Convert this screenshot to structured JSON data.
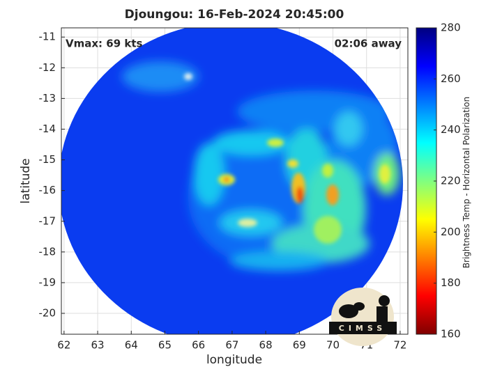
{
  "chart_data": {
    "type": "image",
    "title": "Djoungou: 16-Feb-2024 20:45:00",
    "annotations": [
      "Vmax: 69 kts",
      "02:06 away"
    ],
    "xlabel": "longitude",
    "ylabel": "latitude",
    "xlim": [
      61.92,
      72.23
    ],
    "xticks": [
      62,
      63,
      64,
      65,
      66,
      67,
      68,
      69,
      70,
      71,
      72
    ],
    "ylim": [
      -20.68,
      -10.7
    ],
    "yticks": [
      -11,
      -12,
      -13,
      -14,
      -15,
      -16,
      -17,
      -18,
      -19,
      -20
    ],
    "grid": true,
    "colorbar_label": "Brightness Temp - Horizontal Polarization",
    "clim": [
      160,
      280
    ],
    "cticks": [
      160,
      180,
      200,
      220,
      240,
      260,
      280
    ],
    "colormap": [
      "#800000",
      "#ff0000",
      "#ff8000",
      "#ffff00",
      "#80ff80",
      "#00ffff",
      "#0080ff",
      "#0000ff",
      "#000080"
    ],
    "logo": "CIMSS"
  }
}
